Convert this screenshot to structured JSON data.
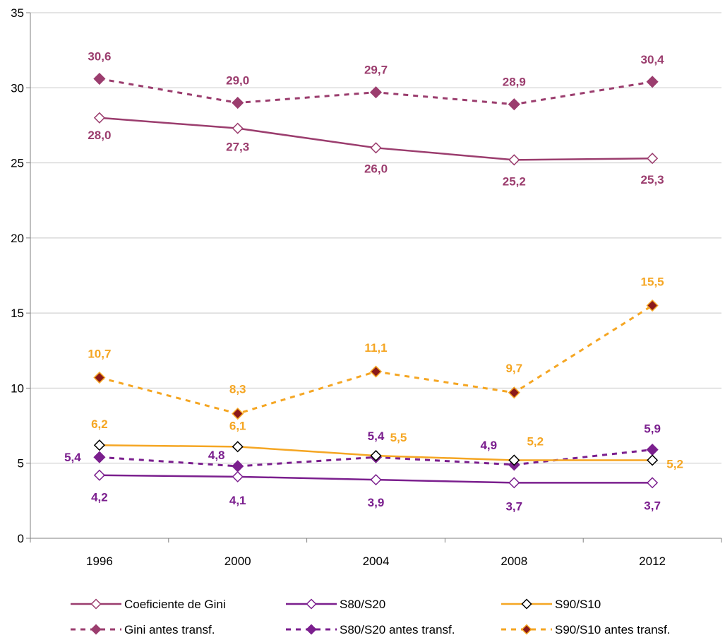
{
  "chart_data": {
    "type": "line",
    "title": "",
    "xlabel": "",
    "ylabel": "",
    "x": [
      "1996",
      "2000",
      "2004",
      "2008",
      "2012"
    ],
    "ylim": [
      0,
      35
    ],
    "yticks": [
      "0",
      "5",
      "10",
      "15",
      "20",
      "25",
      "30",
      "35"
    ],
    "grid": "horizontal",
    "legend": "bottom",
    "series": [
      {
        "name": "Coeficiente de Gini",
        "values": [
          28.0,
          27.3,
          26.0,
          25.2,
          25.3
        ],
        "labels": [
          "28,0",
          "27,3",
          "26,0",
          "25,2",
          "25,3"
        ],
        "color": "#9B3D6E",
        "labelColor": "#9B3D6E",
        "dashed": false,
        "markerFill": "#ffffff",
        "markerStroke": "#9B3D6E"
      },
      {
        "name": "S80/S20",
        "values": [
          4.2,
          4.1,
          3.9,
          3.7,
          3.7
        ],
        "labels": [
          "4,2",
          "4,1",
          "3,9",
          "3,7",
          "3,7"
        ],
        "color": "#7B1F8E",
        "labelColor": "#7B1F8E",
        "dashed": false,
        "markerFill": "#ffffff",
        "markerStroke": "#7B1F8E"
      },
      {
        "name": "S90/S10",
        "values": [
          6.2,
          6.1,
          5.5,
          5.2,
          5.2
        ],
        "labels": [
          "6,2",
          "6,1",
          "5,5",
          "5,2",
          "5,2"
        ],
        "color": "#F5A623",
        "labelColor": "#F5A623",
        "dashed": false,
        "markerFill": "#ffffff",
        "markerStroke": "#000000"
      },
      {
        "name": "Gini antes transf.",
        "values": [
          30.6,
          29.0,
          29.7,
          28.9,
          30.4
        ],
        "labels": [
          "30,6",
          "29,0",
          "29,7",
          "28,9",
          "30,4"
        ],
        "color": "#9B3D6E",
        "labelColor": "#9B3D6E",
        "dashed": true,
        "markerFill": "#9B3D6E",
        "markerStroke": "#9B3D6E"
      },
      {
        "name": "S80/S20 antes transf.",
        "values": [
          5.4,
          4.8,
          5.4,
          4.9,
          5.9
        ],
        "labels": [
          "5,4",
          "4,8",
          "5,4",
          "4,9",
          "5,9"
        ],
        "color": "#7B1F8E",
        "labelColor": "#7B1F8E",
        "dashed": true,
        "markerFill": "#7B1F8E",
        "markerStroke": "#7B1F8E"
      },
      {
        "name": "S90/S10 antes transf.",
        "values": [
          10.7,
          8.3,
          11.1,
          9.7,
          15.5
        ],
        "labels": [
          "10,7",
          "8,3",
          "11,1",
          "9,7",
          "15,5"
        ],
        "color": "#F5A623",
        "labelColor": "#F5A623",
        "dashed": true,
        "markerFill": "#8B1A1A",
        "markerStroke": "#F5A623"
      }
    ]
  }
}
